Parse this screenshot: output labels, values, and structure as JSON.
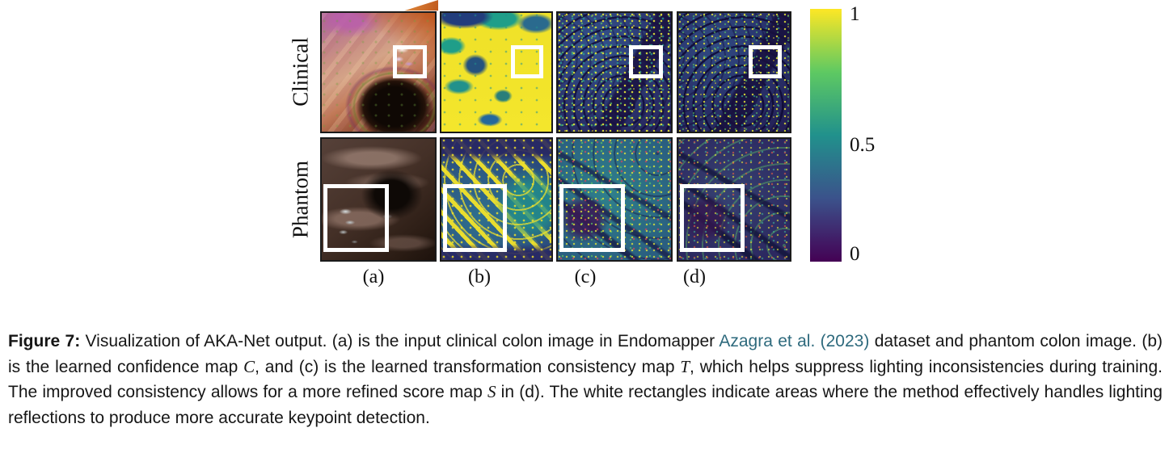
{
  "figure": {
    "rows": [
      {
        "label": "Clinical"
      },
      {
        "label": "Phantom"
      }
    ],
    "columns": [
      "(a)",
      "(b)",
      "(c)",
      "(d)"
    ],
    "panels": [
      {
        "id": "a-clinical",
        "row": "Clinical",
        "col": "(a)",
        "kind": "clinical-input-image"
      },
      {
        "id": "b-clinical",
        "row": "Clinical",
        "col": "(b)",
        "kind": "confidence-map"
      },
      {
        "id": "c-clinical",
        "row": "Clinical",
        "col": "(c)",
        "kind": "transformation-consistency-map"
      },
      {
        "id": "d-clinical",
        "row": "Clinical",
        "col": "(d)",
        "kind": "score-map"
      },
      {
        "id": "a-phantom",
        "row": "Phantom",
        "col": "(a)",
        "kind": "phantom-input-image"
      },
      {
        "id": "b-phantom",
        "row": "Phantom",
        "col": "(b)",
        "kind": "confidence-map"
      },
      {
        "id": "c-phantom",
        "row": "Phantom",
        "col": "(c)",
        "kind": "transformation-consistency-map"
      },
      {
        "id": "d-phantom",
        "row": "Phantom",
        "col": "(d)",
        "kind": "score-map"
      }
    ],
    "highlight_rectangle_color": "#ffffff"
  },
  "colorbar": {
    "ticks": [
      {
        "label": "1"
      },
      {
        "label": "0.5"
      },
      {
        "label": "0"
      }
    ],
    "range": [
      0,
      1
    ],
    "colormap": "viridis",
    "gradient_stops": [
      "#fde725",
      "#5ec962",
      "#21918c",
      "#3b528b",
      "#440154"
    ]
  },
  "caption": {
    "link_color": "#2e6a7d",
    "segments": [
      {
        "t": "Figure 7:",
        "s": "b"
      },
      {
        "t": " Visualization of AKA-Net output. (a) is the input clinical colon image in Endomapper ",
        "s": "p"
      },
      {
        "t": "Azagra et al. (2023)",
        "s": "link"
      },
      {
        "t": " dataset and phantom colon image. (b) is the learned confidence map ",
        "s": "p"
      },
      {
        "t": "C",
        "s": "m"
      },
      {
        "t": ", and (c) is the learned transformation consistency map ",
        "s": "p"
      },
      {
        "t": "T",
        "s": "m"
      },
      {
        "t": ", which helps suppress lighting inconsistencies during training. The improved consistency allows for a more refined score map ",
        "s": "p"
      },
      {
        "t": "S",
        "s": "m"
      },
      {
        "t": " in (d). The white rectangles indicate areas where the method effectively handles lighting reflections to produce more accurate keypoint detection.",
        "s": "p"
      }
    ]
  }
}
